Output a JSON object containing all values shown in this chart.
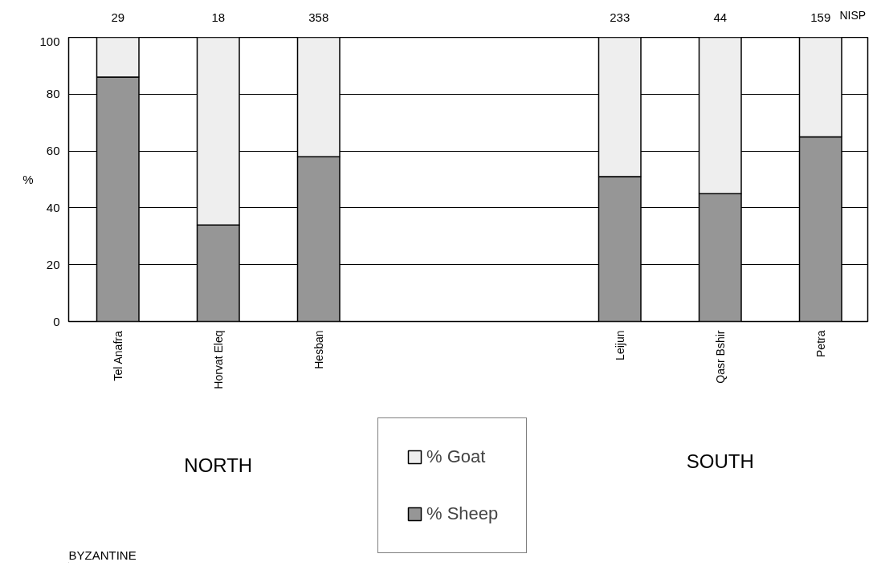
{
  "chart_data": {
    "type": "bar",
    "stacked": true,
    "ylabel": "%",
    "categories": [
      "Tel Anafra",
      "Horvat Eleq",
      "Hesban",
      null,
      null,
      "Leijun",
      "Qasr Bshir",
      "Petra"
    ],
    "series": [
      {
        "name": "% Sheep",
        "color": "#969696",
        "values": [
          86,
          34,
          58,
          null,
          null,
          51,
          45,
          65
        ]
      },
      {
        "name": "% Goat",
        "color": "#eeeeee",
        "values": [
          14,
          66,
          42,
          null,
          null,
          49,
          55,
          35
        ]
      }
    ],
    "ylim": [
      0,
      100
    ],
    "yticks": [
      0,
      20,
      40,
      60,
      80,
      100
    ],
    "grid": "y",
    "legend": "bottom",
    "annotations": [
      {
        "text": "29",
        "x": "Tel Anafra",
        "y": 100
      },
      {
        "text": "18",
        "x": "Horvat Eleq",
        "y": 100
      },
      {
        "text": "358",
        "x": "Hesban",
        "y": 100
      },
      {
        "text": "233",
        "x": "Leijun",
        "y": 100
      },
      {
        "text": "44",
        "x": "Qasr Bshir",
        "y": 100
      },
      {
        "text": "159",
        "x": "Petra",
        "y": 100
      },
      "NISP",
      "NORTH",
      "SOUTH",
      "BYZANTINE"
    ]
  }
}
